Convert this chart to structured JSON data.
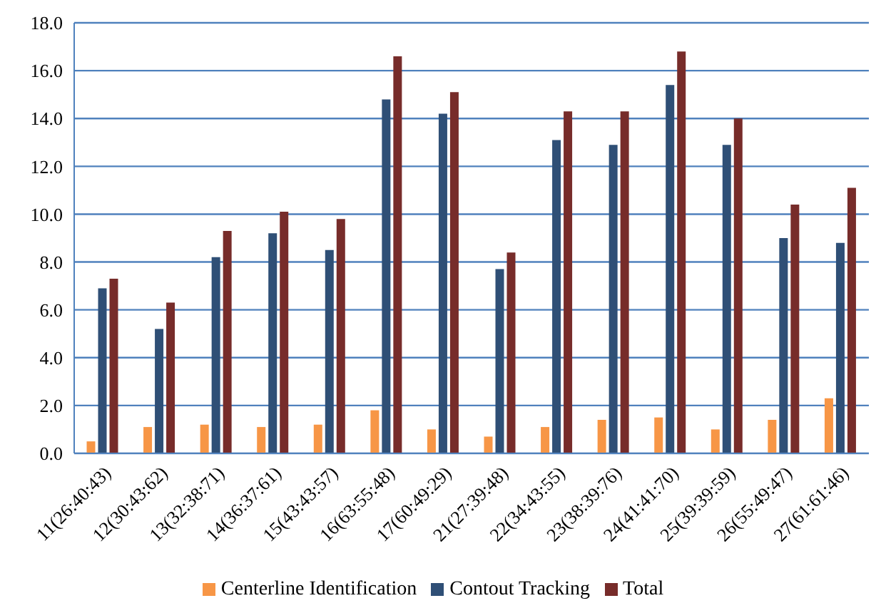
{
  "chart_data": {
    "type": "bar",
    "categories": [
      "11(26:40:43)",
      "12(30:43:62)",
      "13(32:38:71)",
      "14(36:37:61)",
      "15(43:43:57)",
      "16(63:55:48)",
      "17(60:49:29)",
      "21(27:39:48)",
      "22(34:43:55)",
      "23(38:39:76)",
      "24(41:41:70)",
      "25(39:39:59)",
      "26(55:49:47)",
      "27(61:61:46)"
    ],
    "series": [
      {
        "name": "Centerline Identification",
        "color": "#f79646",
        "values": [
          0.5,
          1.1,
          1.2,
          1.1,
          1.2,
          1.8,
          1.0,
          0.7,
          1.1,
          1.4,
          1.5,
          1.0,
          1.4,
          2.3
        ]
      },
      {
        "name": "Contout Tracking",
        "color": "#2f4f76",
        "values": [
          6.9,
          5.2,
          8.2,
          9.2,
          8.5,
          14.8,
          14.2,
          7.7,
          13.1,
          12.9,
          15.4,
          12.9,
          9.0,
          8.8
        ]
      },
      {
        "name": "Total",
        "color": "#772c2a",
        "values": [
          7.3,
          6.3,
          9.3,
          10.1,
          9.8,
          16.6,
          15.1,
          8.4,
          14.3,
          14.3,
          16.8,
          14.0,
          10.4,
          11.1
        ]
      }
    ],
    "ylim": [
      0,
      18
    ],
    "yticks": [
      {
        "value": 0,
        "label": "0.0"
      },
      {
        "value": 2,
        "label": "2.0"
      },
      {
        "value": 4,
        "label": "4.0"
      },
      {
        "value": 6,
        "label": "6.0"
      },
      {
        "value": 8,
        "label": "8.0"
      },
      {
        "value": 10,
        "label": "10.0"
      },
      {
        "value": 12,
        "label": "12.0"
      },
      {
        "value": 14,
        "label": "14.0"
      },
      {
        "value": 16,
        "label": "16.0"
      },
      {
        "value": 18,
        "label": "18.0"
      }
    ],
    "grid": "y",
    "legend": "bottom"
  }
}
